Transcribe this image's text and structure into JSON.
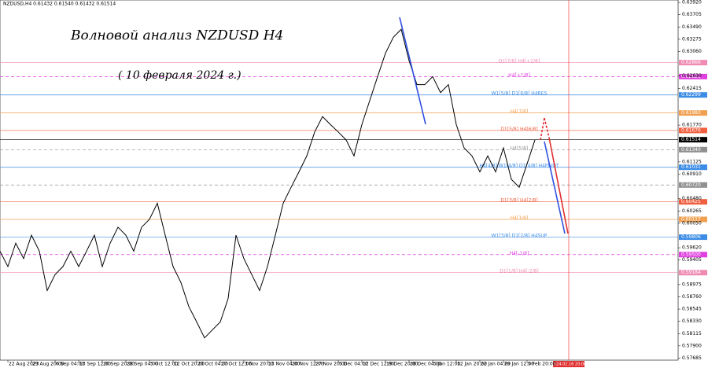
{
  "chart_data": {
    "type": "line",
    "header": "NZDUSD,H4  0.61432 0.61540 0.61432 0.61514",
    "title": "Волновой анализ NZDUSD H4",
    "subtitle": "( 10 февраля 2024 г.)",
    "forecast_label": "2024.02.16 20:00",
    "categories": [
      null,
      "22 Aug 2023",
      null,
      null,
      "29 Aug 20:00",
      null,
      null,
      "6 Sep 04:00",
      null,
      null,
      "13 Sep 12:00",
      null,
      null,
      "20 Sep 20:00",
      null,
      null,
      "28 Sep 04:00",
      null,
      null,
      "5 Oct 12:00",
      null,
      null,
      "12 Oct 20:00",
      null,
      null,
      "20 Oct 04:00",
      null,
      null,
      "27 Oct 12:00",
      null,
      null,
      "3 Nov 20:00",
      null,
      null,
      "13 Nov 04:00",
      null,
      null,
      "20 Nov 12:00",
      null,
      null,
      "27 Nov 20:00",
      null,
      null,
      "5 Dec 04:00",
      null,
      null,
      "12 Dec 12:00",
      null,
      null,
      "19 Dec 20:00",
      null,
      null,
      "28 Dec 04:00",
      null,
      null,
      "5 Jan 12:00",
      null,
      null,
      "12 Jan 20:00",
      null,
      null,
      "22 Jan 04:00",
      null,
      null,
      "29 Jan 12:00",
      null,
      null,
      "5 Feb 20:00",
      null
    ],
    "series": [
      {
        "name": "NZDUSD",
        "color": "#000000",
        "values": [
          0.5956,
          0.5929,
          0.597,
          0.5943,
          0.5984,
          0.5956,
          0.5887,
          0.5915,
          0.5929,
          0.5956,
          0.5929,
          0.5956,
          0.5984,
          0.5929,
          0.597,
          0.5998,
          0.5984,
          0.5956,
          0.5998,
          0.6012,
          0.604,
          0.5984,
          0.5929,
          0.5901,
          0.5859,
          0.5832,
          0.5804,
          0.5818,
          0.5832,
          0.5873,
          0.5984,
          0.5943,
          0.5915,
          0.5887,
          0.5929,
          0.5984,
          0.604,
          0.6068,
          0.6095,
          0.6123,
          0.6165,
          0.6192,
          0.6178,
          0.6165,
          0.6151,
          0.6123,
          0.6178,
          0.622,
          0.6262,
          0.6303,
          0.6331,
          0.6345,
          0.629,
          0.6248,
          0.6248,
          0.6262,
          0.6234,
          0.6248,
          0.6178,
          0.6137,
          0.6123,
          0.6095,
          0.6123,
          0.6095,
          0.6137,
          0.6082,
          0.6068,
          0.6109,
          0.6151
        ]
      }
    ],
    "ylim": [
      0.5765,
      0.63963
    ],
    "yticks": [
      {
        "value": 0.6392,
        "label": "0.63920"
      },
      {
        "value": 0.63705,
        "label": "0.63705"
      },
      {
        "value": 0.6349,
        "label": "0.63490"
      },
      {
        "value": 0.63275,
        "label": "0.63275"
      },
      {
        "value": 0.6306,
        "label": "0.63060"
      },
      {
        "value": 0.6263,
        "label": "0.62630"
      },
      {
        "value": 0.62415,
        "label": "0.62415"
      },
      {
        "value": 0.6177,
        "label": "0.61770"
      },
      {
        "value": 0.61125,
        "label": "0.61125"
      },
      {
        "value": 0.6091,
        "label": "0.60910"
      },
      {
        "value": 0.6048,
        "label": "0.60480"
      },
      {
        "value": 0.60265,
        "label": "0.60265"
      },
      {
        "value": 0.6005,
        "label": "0.60050"
      },
      {
        "value": 0.5962,
        "label": "0.59620"
      },
      {
        "value": 0.59405,
        "label": "0.59405"
      },
      {
        "value": 0.58975,
        "label": "0.58975"
      },
      {
        "value": 0.5876,
        "label": "0.58760"
      },
      {
        "value": 0.58545,
        "label": "0.58545"
      },
      {
        "value": 0.5833,
        "label": "0.58330"
      },
      {
        "value": 0.58115,
        "label": "0.58115"
      },
      {
        "value": 0.579,
        "label": "0.57900"
      },
      {
        "value": 0.57685,
        "label": "0.57685"
      }
    ],
    "levels": [
      {
        "name": "D1[7/8] H4[+2/8]",
        "value": 0.62866,
        "value_label": "0.62866",
        "color": "#f08cb4"
      },
      {
        "name": "H4[+1/8]",
        "value": 0.62621,
        "value_label": "0.62621",
        "color": "#e040e0"
      },
      {
        "name": "W1[5/8] D1[6/8] H4RES",
        "value": 0.62299,
        "value_label": "0.62299",
        "color": "#3c8ce6"
      },
      {
        "name": "H4[7/8]",
        "value": 0.61983,
        "value_label": "0.61983",
        "color": "#f0a050"
      },
      {
        "name": "D1[5/8] H4[6/8]",
        "value": 0.61676,
        "value_label": "0.61676",
        "color": "#f06040"
      },
      {
        "value": 0.61514,
        "value_label": "0.61514",
        "color": "#000000"
      },
      {
        "name": "H4[5/8]",
        "value": 0.6134,
        "value_label": "0.61340",
        "color": "#909090"
      },
      {
        "name": "H4[4/8] W1[4/8] D1[4/8] H4PIVOT",
        "value": 0.61031,
        "value_label": "0.61031",
        "color": "#3c8ce6"
      },
      {
        "value": 0.6072,
        "value_label": "0.60720",
        "color": "#909090"
      },
      {
        "name": "D1[3/8] H4[2/8]",
        "value": 0.60425,
        "value_label": "0.60425",
        "color": "#f06040"
      },
      {
        "name": "H4[1/8]",
        "value": 0.60117,
        "value_label": "0.60117",
        "color": "#f0a050"
      },
      {
        "name": "W1[3/8] D1[2/8] H4SUP",
        "value": 0.59806,
        "value_label": "0.59806",
        "color": "#3c8ce6"
      },
      {
        "name": "H4[-1/8]",
        "value": 0.595,
        "value_label": "0.59500",
        "color": "#e040e0"
      },
      {
        "name": "D1[1/8] H4[-2/8]",
        "value": 0.59184,
        "value_label": "0.59184",
        "color": "#f08cb4"
      }
    ]
  }
}
